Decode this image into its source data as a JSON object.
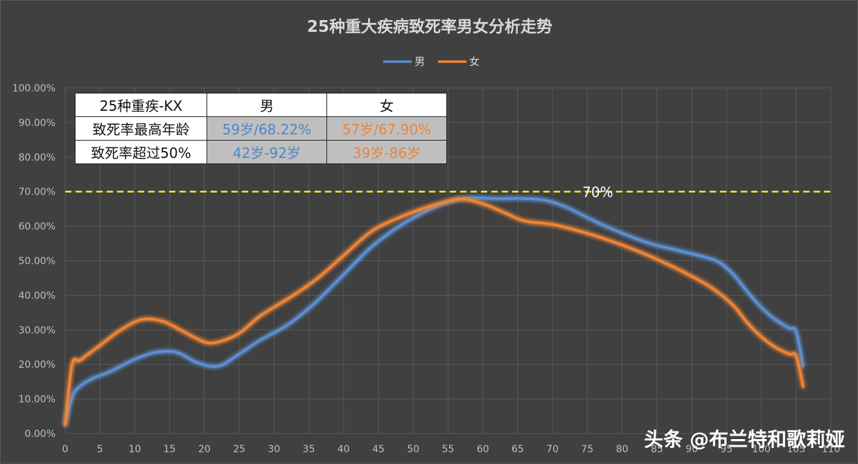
{
  "chart_data": {
    "type": "line",
    "title": "25种重大疾病致死率男女分析走势",
    "xlabel": "",
    "ylabel": "",
    "xlim": [
      0,
      110
    ],
    "ylim": [
      0,
      100
    ],
    "x_ticks": [
      "0",
      "5",
      "10",
      "15",
      "20",
      "25",
      "30",
      "35",
      "40",
      "45",
      "50",
      "55",
      "60",
      "65",
      "70",
      "75",
      "80",
      "85",
      "90",
      "95",
      "100",
      "105",
      "110"
    ],
    "y_ticks": [
      "0.00%",
      "10.00%",
      "20.00%",
      "30.00%",
      "40.00%",
      "50.00%",
      "60.00%",
      "70.00%",
      "80.00%",
      "90.00%",
      "100.00%"
    ],
    "grid": true,
    "legend_position": "top",
    "series": [
      {
        "name": "男",
        "color": "#5b8fd1",
        "x": [
          0,
          1,
          2,
          4,
          6,
          8,
          10,
          13,
          16,
          19,
          22,
          25,
          28,
          32,
          36,
          40,
          44,
          48,
          52,
          55,
          58,
          62,
          66,
          69,
          72,
          76,
          80,
          84,
          88,
          92,
          94,
          96,
          98,
          100,
          102,
          104,
          105,
          106
        ],
        "y": [
          2.5,
          10.5,
          13.5,
          16.0,
          17.5,
          19.5,
          21.5,
          23.5,
          23.5,
          20.5,
          19.5,
          23.0,
          27.0,
          31.5,
          38.0,
          46.0,
          54.0,
          60.0,
          64.5,
          67.0,
          68.2,
          68.0,
          68.0,
          67.5,
          65.5,
          61.5,
          58.0,
          55.0,
          53.0,
          51.0,
          49.5,
          46.0,
          41.0,
          36.5,
          33.0,
          30.5,
          29.5,
          19.5
        ]
      },
      {
        "name": "女",
        "color": "#ee8537",
        "x": [
          0,
          1,
          2,
          3,
          5,
          8,
          11,
          14,
          17,
          20,
          22,
          25,
          28,
          32,
          36,
          40,
          44,
          48,
          52,
          55,
          57,
          60,
          63,
          66,
          70,
          74,
          78,
          82,
          86,
          90,
          93,
          96,
          98,
          100,
          102,
          104,
          105,
          106
        ],
        "y": [
          2.5,
          20.0,
          21.0,
          22.5,
          25.5,
          30.0,
          33.0,
          32.5,
          29.5,
          26.5,
          26.5,
          29.0,
          34.0,
          39.0,
          44.5,
          51.5,
          58.5,
          62.5,
          65.5,
          67.2,
          67.9,
          66.5,
          64.0,
          61.5,
          60.5,
          58.5,
          56.0,
          53.0,
          49.5,
          45.5,
          42.0,
          37.0,
          32.0,
          28.0,
          25.0,
          23.0,
          22.5,
          13.5
        ]
      }
    ],
    "reference_line": {
      "y": 70,
      "label": "70%",
      "color": "#f5e633"
    }
  },
  "table": {
    "header": [
      "25种重疾-KX",
      "男",
      "女"
    ],
    "rows": [
      {
        "label": "致死率最高年龄",
        "male": "59岁/68.22%",
        "female": "57岁/67.90%"
      },
      {
        "label": "致死率超过50%",
        "male": "42岁-92岁",
        "female": "39岁-86岁"
      }
    ]
  },
  "watermark": "头条 @布兰特和歌莉娅"
}
